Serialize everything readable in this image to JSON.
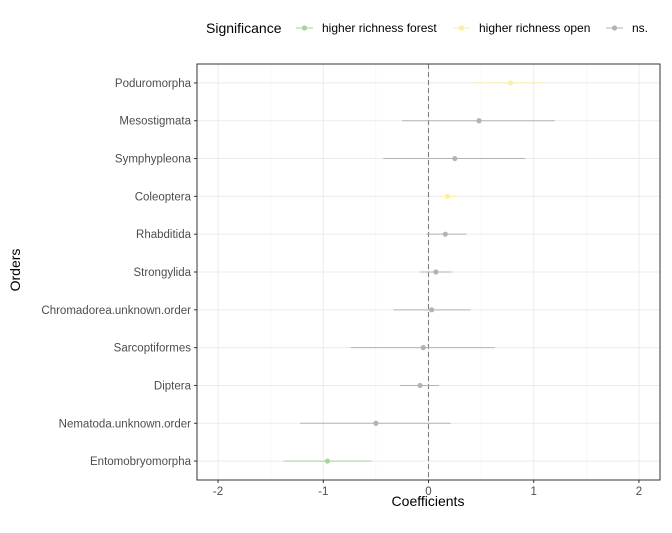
{
  "chart_data": {
    "type": "scatter",
    "subtype": "forest-plot",
    "xlabel": "Coefficients",
    "ylabel": "Orders",
    "xlim": [
      -2.2,
      2.2
    ],
    "x_ticks": [
      -2,
      -1,
      0,
      1,
      2
    ],
    "x_tick_labels": [
      "-2",
      "-1",
      "0",
      "1",
      "2"
    ],
    "reference_line": 0,
    "grid": true,
    "legend": {
      "title": "Significance",
      "position": "top",
      "entries": [
        {
          "label": "higher richness forest",
          "color": "#a6d49a"
        },
        {
          "label": "higher richness open",
          "color": "#fbeea6"
        },
        {
          "label": "ns.",
          "color": "#b3b3b3"
        }
      ]
    },
    "categories": [
      "Poduromorpha",
      "Mesostigmata",
      "Symphypleona",
      "Coleoptera",
      "Rhabditida",
      "Strongylida",
      "Chromadorea.unknown.order",
      "Sarcoptiformes",
      "Diptera",
      "Nematoda.unknown.order",
      "Entomobryomorpha"
    ],
    "points": [
      {
        "category": "Poduromorpha",
        "estimate": 0.78,
        "lower": 0.42,
        "upper": 1.12,
        "significance": "higher richness open"
      },
      {
        "category": "Mesostigmata",
        "estimate": 0.48,
        "lower": -0.25,
        "upper": 1.2,
        "significance": "ns."
      },
      {
        "category": "Symphypleona",
        "estimate": 0.25,
        "lower": -0.43,
        "upper": 0.92,
        "significance": "ns."
      },
      {
        "category": "Coleoptera",
        "estimate": 0.18,
        "lower": 0.1,
        "upper": 0.28,
        "significance": "higher richness open"
      },
      {
        "category": "Rhabditida",
        "estimate": 0.16,
        "lower": -0.02,
        "upper": 0.36,
        "significance": "ns."
      },
      {
        "category": "Strongylida",
        "estimate": 0.07,
        "lower": -0.08,
        "upper": 0.22,
        "significance": "ns."
      },
      {
        "category": "Chromadorea.unknown.order",
        "estimate": 0.03,
        "lower": -0.33,
        "upper": 0.4,
        "significance": "ns."
      },
      {
        "category": "Sarcoptiformes",
        "estimate": -0.05,
        "lower": -0.74,
        "upper": 0.63,
        "significance": "ns."
      },
      {
        "category": "Diptera",
        "estimate": -0.08,
        "lower": -0.27,
        "upper": 0.1,
        "significance": "ns."
      },
      {
        "category": "Nematoda.unknown.order",
        "estimate": -0.5,
        "lower": -1.22,
        "upper": 0.21,
        "significance": "ns."
      },
      {
        "category": "Entomobryomorpha",
        "estimate": -0.96,
        "lower": -1.38,
        "upper": -0.54,
        "significance": "higher richness forest"
      }
    ],
    "colors": {
      "higher richness forest": "#a6d49a",
      "higher richness open": "#fbeea6",
      "ns.": "#b3b3b3",
      "grid_major": "#ebebeb",
      "grid_minor": "#f5f5f5",
      "panel_border": "#333333",
      "reference_line": "#7f7f7f"
    }
  }
}
